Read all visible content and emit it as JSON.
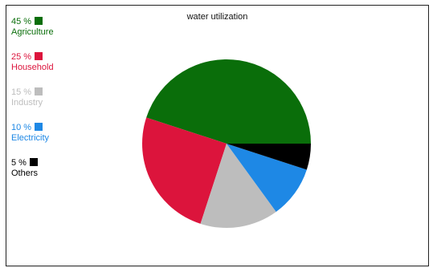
{
  "chart_data": {
    "type": "pie",
    "title": "water utilization",
    "legend_position": "left",
    "slices": [
      {
        "label": "Agriculture",
        "percent_label": "45 %",
        "value": 45,
        "color": "#0a6e0a"
      },
      {
        "label": "Household",
        "percent_label": "25 %",
        "value": 25,
        "color": "#dc143c"
      },
      {
        "label": "Industry",
        "percent_label": "15 %",
        "value": 15,
        "color": "#bdbdbd"
      },
      {
        "label": "Electricity",
        "percent_label": "10 %",
        "value": 10,
        "color": "#1e88e5"
      },
      {
        "label": "Others",
        "percent_label": "5 %",
        "value": 5,
        "color": "#000000"
      }
    ]
  }
}
